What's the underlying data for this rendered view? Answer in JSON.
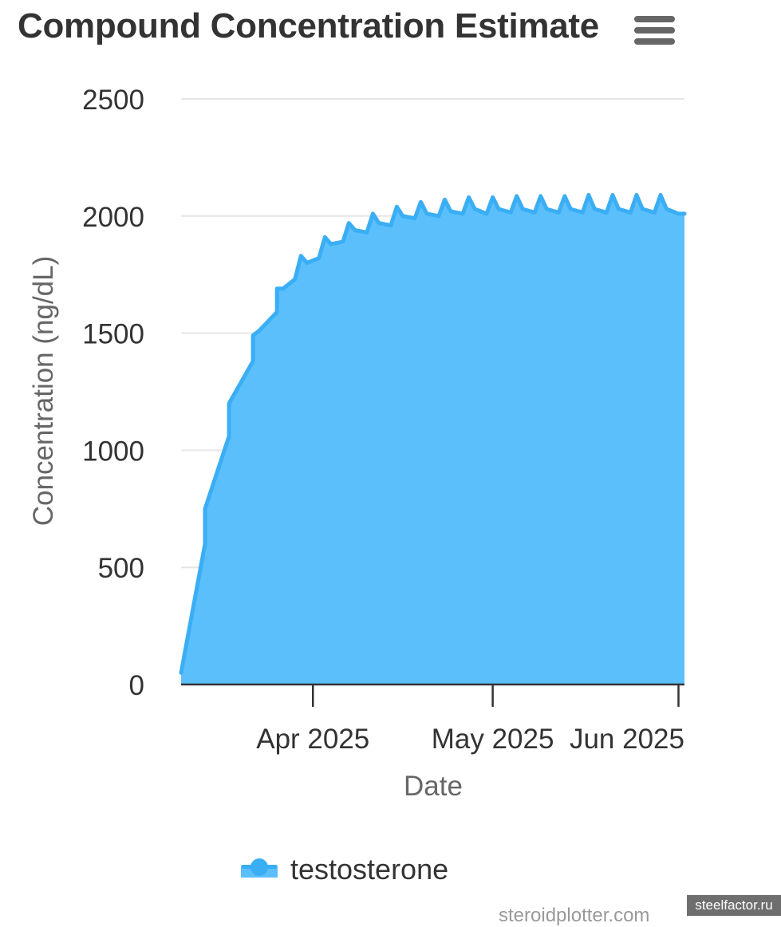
{
  "header": {
    "menu_icon": "hamburger-menu-icon"
  },
  "credits": "steroidplotter.com",
  "watermark": "steelfactor.ru",
  "colors": {
    "series_fill": "#5bbffc",
    "series_line": "#3aaef5",
    "grid": "#e6e6e6",
    "axis": "#333333",
    "title": "#333333",
    "axis_title": "#666666"
  },
  "chart_data": {
    "type": "area",
    "title": "Compound Concentration Estimate",
    "xlabel": "Date",
    "ylabel": "Concentration (ng/dL)",
    "ylim": [
      0,
      2500
    ],
    "yticks": [
      0,
      500,
      1000,
      1500,
      2000,
      2500
    ],
    "xlim": [
      "2025-03-09",
      "2025-06-01"
    ],
    "xticks": [
      {
        "date": "2025-03-31",
        "label": "Apr 2025"
      },
      {
        "date": "2025-04-30",
        "label": "May 2025"
      },
      {
        "date": "2025-05-31",
        "label": "Jun 2025"
      }
    ],
    "grid": true,
    "legend": "bottom-center",
    "series": [
      {
        "name": "testosterone",
        "points": [
          [
            "2025-03-09",
            50
          ],
          [
            "2025-03-13",
            600
          ],
          [
            "2025-03-13",
            750
          ],
          [
            "2025-03-17",
            1060
          ],
          [
            "2025-03-17",
            1200
          ],
          [
            "2025-03-21",
            1380
          ],
          [
            "2025-03-21",
            1490
          ],
          [
            "2025-03-22",
            1510
          ],
          [
            "2025-03-25",
            1590
          ],
          [
            "2025-03-25",
            1690
          ],
          [
            "2025-03-26",
            1690
          ],
          [
            "2025-03-28",
            1730
          ],
          [
            "2025-03-29",
            1830
          ],
          [
            "2025-03-30",
            1800
          ],
          [
            "2025-04-01",
            1820
          ],
          [
            "2025-04-02",
            1910
          ],
          [
            "2025-04-03",
            1880
          ],
          [
            "2025-04-05",
            1890
          ],
          [
            "2025-04-06",
            1970
          ],
          [
            "2025-04-07",
            1940
          ],
          [
            "2025-04-09",
            1930
          ],
          [
            "2025-04-10",
            2010
          ],
          [
            "2025-04-11",
            1970
          ],
          [
            "2025-04-13",
            1960
          ],
          [
            "2025-04-14",
            2040
          ],
          [
            "2025-04-15",
            2000
          ],
          [
            "2025-04-17",
            1990
          ],
          [
            "2025-04-18",
            2060
          ],
          [
            "2025-04-19",
            2010
          ],
          [
            "2025-04-21",
            2000
          ],
          [
            "2025-04-22",
            2070
          ],
          [
            "2025-04-23",
            2020
          ],
          [
            "2025-04-25",
            2010
          ],
          [
            "2025-04-26",
            2080
          ],
          [
            "2025-04-27",
            2030
          ],
          [
            "2025-04-29",
            2010
          ],
          [
            "2025-04-30",
            2080
          ],
          [
            "2025-05-01",
            2030
          ],
          [
            "2025-05-03",
            2015
          ],
          [
            "2025-05-04",
            2085
          ],
          [
            "2025-05-05",
            2030
          ],
          [
            "2025-05-07",
            2015
          ],
          [
            "2025-05-08",
            2085
          ],
          [
            "2025-05-09",
            2030
          ],
          [
            "2025-05-11",
            2015
          ],
          [
            "2025-05-12",
            2085
          ],
          [
            "2025-05-13",
            2030
          ],
          [
            "2025-05-15",
            2015
          ],
          [
            "2025-05-16",
            2090
          ],
          [
            "2025-05-17",
            2030
          ],
          [
            "2025-05-19",
            2015
          ],
          [
            "2025-05-20",
            2090
          ],
          [
            "2025-05-21",
            2030
          ],
          [
            "2025-05-23",
            2015
          ],
          [
            "2025-05-24",
            2090
          ],
          [
            "2025-05-25",
            2030
          ],
          [
            "2025-05-27",
            2015
          ],
          [
            "2025-05-28",
            2090
          ],
          [
            "2025-05-29",
            2030
          ],
          [
            "2025-05-31",
            2010
          ],
          [
            "2025-06-01",
            2010
          ]
        ]
      }
    ]
  }
}
